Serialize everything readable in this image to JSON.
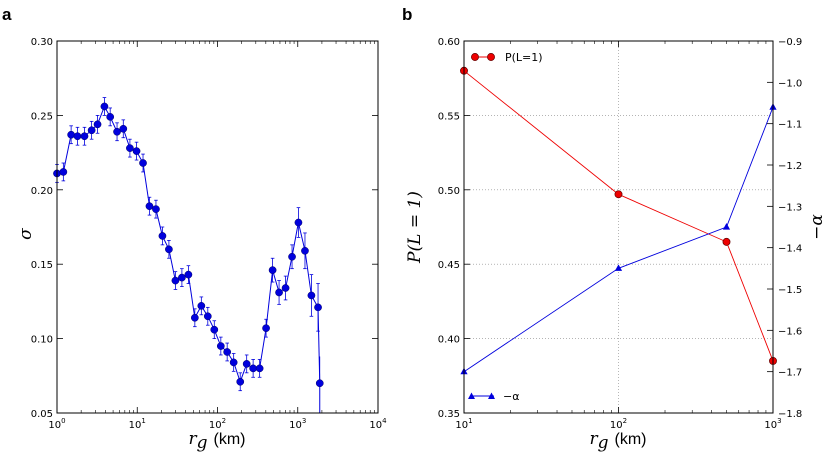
{
  "chart_data": [
    {
      "panel": "a",
      "type": "scatter",
      "xscale": "log",
      "xlim": [
        1,
        10000
      ],
      "ylim": [
        0.05,
        0.3
      ],
      "ylabel": "σ",
      "xlabel_var": "r",
      "xlabel_sub": "g",
      "xlabel_unit": "(km)",
      "xticks": [
        1,
        10,
        100,
        1000,
        10000
      ],
      "xtick_labels": [
        {
          "base": "10",
          "exp": "0"
        },
        {
          "base": "10",
          "exp": "1"
        },
        {
          "base": "10",
          "exp": "2"
        },
        {
          "base": "10",
          "exp": "3"
        },
        {
          "base": "10",
          "exp": "4"
        }
      ],
      "yticks": [
        0.05,
        0.1,
        0.15,
        0.2,
        0.25,
        0.3
      ],
      "ytick_labels": [
        "0.05",
        "0.10",
        "0.15",
        "0.20",
        "0.25",
        "0.30"
      ],
      "grid": false,
      "color": "#0000dd",
      "series": [
        {
          "x": [
            1.0,
            1.2,
            1.5,
            1.8,
            2.2,
            2.7,
            3.2,
            3.9,
            4.6,
            5.6,
            6.7,
            8.1,
            9.8,
            11.8,
            14.2,
            17.1,
            20.6,
            24.8,
            29.9,
            36.0,
            43.4,
            52.2,
            62.9,
            75.7,
            91.2,
            110,
            132,
            159,
            192,
            231,
            278,
            335,
            403,
            486,
            585,
            705,
            849,
            1020,
            1230,
            1480,
            1790
          ],
          "y": [
            0.211,
            0.212,
            0.237,
            0.236,
            0.236,
            0.24,
            0.244,
            0.256,
            0.249,
            0.239,
            0.241,
            0.228,
            0.226,
            0.218,
            0.189,
            0.187,
            0.169,
            0.16,
            0.139,
            0.141,
            0.143,
            0.114,
            0.122,
            0.115,
            0.106,
            0.095,
            0.091,
            0.084,
            0.071,
            0.083,
            0.08,
            0.08,
            0.107,
            0.146,
            0.131,
            0.134,
            0.155,
            0.178,
            0.159,
            0.129,
            0.121
          ],
          "yerr": [
            0.006,
            0.006,
            0.006,
            0.006,
            0.006,
            0.006,
            0.006,
            0.006,
            0.006,
            0.006,
            0.006,
            0.006,
            0.006,
            0.006,
            0.006,
            0.006,
            0.006,
            0.006,
            0.006,
            0.006,
            0.006,
            0.006,
            0.006,
            0.006,
            0.006,
            0.006,
            0.006,
            0.006,
            0.006,
            0.006,
            0.006,
            0.006,
            0.006,
            0.008,
            0.008,
            0.008,
            0.008,
            0.01,
            0.012,
            0.014,
            0.016
          ]
        }
      ],
      "tail_point": {
        "x": 1880,
        "y": 0.07,
        "yerr": 0.018
      }
    },
    {
      "panel": "b",
      "type": "line",
      "xscale": "log",
      "xlim": [
        10,
        1000
      ],
      "ylim_left": [
        0.35,
        0.6
      ],
      "ylim_right": [
        -1.8,
        -0.9
      ],
      "xticks": [
        10,
        100,
        1000
      ],
      "xtick_labels": [
        {
          "base": "10",
          "exp": "1"
        },
        {
          "base": "10",
          "exp": "2"
        },
        {
          "base": "10",
          "exp": "3"
        }
      ],
      "yticks_left": [
        0.35,
        0.4,
        0.45,
        0.5,
        0.55,
        0.6
      ],
      "ytick_labels_left": [
        "0.35",
        "0.40",
        "0.45",
        "0.50",
        "0.55",
        "0.60"
      ],
      "yticks_right": [
        -1.8,
        -1.7,
        -1.6,
        -1.5,
        -1.4,
        -1.3,
        -1.2,
        -1.1,
        -1.0,
        -0.9
      ],
      "ytick_labels_right": [
        "−1.8",
        "−1.7",
        "−1.6",
        "−1.5",
        "−1.4",
        "−1.3",
        "−1.2",
        "−1.1",
        "−1.0",
        "−0.9"
      ],
      "ylabel_left": "P(L = 1)",
      "ylabel_right": "−α",
      "xlabel_var": "r",
      "xlabel_sub": "g",
      "xlabel_unit": "(km)",
      "grid": true,
      "series": [
        {
          "name": "P(L=1)",
          "axis": "left",
          "marker": "circle",
          "color": "#ee0000",
          "x": [
            10,
            100,
            500,
            1000
          ],
          "y": [
            0.58,
            0.497,
            0.465,
            0.385
          ]
        },
        {
          "name": "−α",
          "axis": "right",
          "marker": "triangle",
          "color": "#0000dd",
          "x": [
            10,
            100,
            500,
            1000
          ],
          "y": [
            -1.7,
            -1.45,
            -1.35,
            -1.06
          ]
        }
      ],
      "legend": [
        {
          "name": "P(L=1)",
          "placement": "top-left"
        },
        {
          "name": "−α",
          "placement": "bottom-left"
        }
      ]
    }
  ]
}
